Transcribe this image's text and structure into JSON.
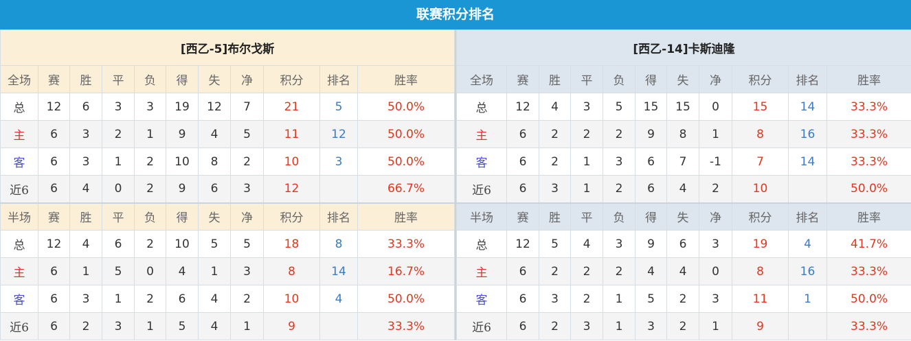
{
  "title": "联赛积分排名",
  "colors": {
    "title_bg": "#1a96d4",
    "points": "#e8341c",
    "rank": "#3a7bc8"
  },
  "teams": [
    {
      "name": "[西乙-5]布尔戈斯",
      "sections": [
        {
          "header": [
            "全场",
            "赛",
            "胜",
            "平",
            "负",
            "得",
            "失",
            "净",
            "积分",
            "排名",
            "胜率"
          ],
          "rows": [
            [
              "总",
              "12",
              "6",
              "3",
              "3",
              "19",
              "12",
              "7",
              "21",
              "5",
              "50.0%"
            ],
            [
              "主",
              "6",
              "3",
              "2",
              "1",
              "9",
              "4",
              "5",
              "11",
              "12",
              "50.0%"
            ],
            [
              "客",
              "6",
              "3",
              "1",
              "2",
              "10",
              "8",
              "2",
              "10",
              "3",
              "50.0%"
            ],
            [
              "近6",
              "6",
              "4",
              "0",
              "2",
              "9",
              "6",
              "3",
              "12",
              "",
              "66.7%"
            ]
          ]
        },
        {
          "header": [
            "半场",
            "赛",
            "胜",
            "平",
            "负",
            "得",
            "失",
            "净",
            "积分",
            "排名",
            "胜率"
          ],
          "rows": [
            [
              "总",
              "12",
              "4",
              "6",
              "2",
              "10",
              "5",
              "5",
              "18",
              "8",
              "33.3%"
            ],
            [
              "主",
              "6",
              "1",
              "5",
              "0",
              "4",
              "1",
              "3",
              "8",
              "14",
              "16.7%"
            ],
            [
              "客",
              "6",
              "3",
              "1",
              "2",
              "6",
              "4",
              "2",
              "10",
              "4",
              "50.0%"
            ],
            [
              "近6",
              "6",
              "2",
              "3",
              "1",
              "5",
              "4",
              "1",
              "9",
              "",
              "33.3%"
            ]
          ]
        }
      ]
    },
    {
      "name": "[西乙-14]卡斯迪隆",
      "sections": [
        {
          "header": [
            "全场",
            "赛",
            "胜",
            "平",
            "负",
            "得",
            "失",
            "净",
            "积分",
            "排名",
            "胜率"
          ],
          "rows": [
            [
              "总",
              "12",
              "4",
              "3",
              "5",
              "15",
              "15",
              "0",
              "15",
              "14",
              "33.3%"
            ],
            [
              "主",
              "6",
              "2",
              "2",
              "2",
              "9",
              "8",
              "1",
              "8",
              "16",
              "33.3%"
            ],
            [
              "客",
              "6",
              "2",
              "1",
              "3",
              "6",
              "7",
              "-1",
              "7",
              "14",
              "33.3%"
            ],
            [
              "近6",
              "6",
              "3",
              "1",
              "2",
              "6",
              "4",
              "2",
              "10",
              "",
              "50.0%"
            ]
          ]
        },
        {
          "header": [
            "半场",
            "赛",
            "胜",
            "平",
            "负",
            "得",
            "失",
            "净",
            "积分",
            "排名",
            "胜率"
          ],
          "rows": [
            [
              "总",
              "12",
              "5",
              "4",
              "3",
              "9",
              "6",
              "3",
              "19",
              "4",
              "41.7%"
            ],
            [
              "主",
              "6",
              "2",
              "2",
              "2",
              "4",
              "4",
              "0",
              "8",
              "16",
              "33.3%"
            ],
            [
              "客",
              "6",
              "3",
              "2",
              "1",
              "5",
              "2",
              "3",
              "11",
              "1",
              "50.0%"
            ],
            [
              "近6",
              "6",
              "2",
              "3",
              "1",
              "3",
              "2",
              "1",
              "9",
              "",
              "33.3%"
            ]
          ]
        }
      ]
    }
  ]
}
